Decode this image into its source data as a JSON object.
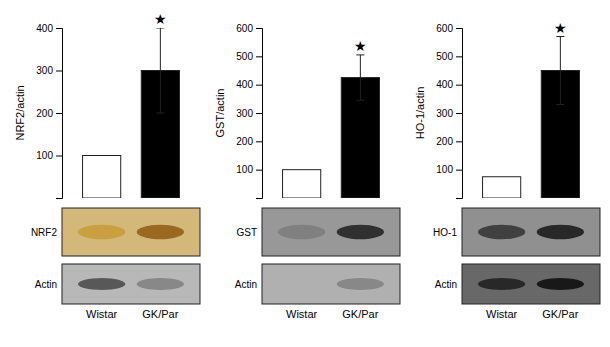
{
  "chart_data": [
    {
      "type": "bar",
      "ylabel": "NRF2/actin",
      "categories": [
        "Wistar",
        "GK/Par"
      ],
      "values": [
        100,
        300
      ],
      "errors": [
        0,
        100
      ],
      "colors": [
        "white",
        "black"
      ],
      "ylim": [
        0,
        400
      ],
      "yticks": [
        100,
        200,
        300,
        400
      ],
      "annotations": [
        {
          "text": "★",
          "x": "GK/Par"
        }
      ],
      "blots": [
        {
          "label": "NRF2",
          "color": "#d4b87a",
          "colors": [
            "#c8a040",
            "#9a6820"
          ]
        },
        {
          "label": "Actin",
          "color": "#b8b8b8",
          "colors": [
            "#585858",
            "#888888"
          ]
        }
      ]
    },
    {
      "type": "bar",
      "ylabel": "GST/actin",
      "categories": [
        "Wistar",
        "GK/Par"
      ],
      "values": [
        100,
        425
      ],
      "errors": [
        0,
        80
      ],
      "colors": [
        "white",
        "black"
      ],
      "ylim": [
        0,
        600
      ],
      "yticks": [
        100,
        200,
        300,
        400,
        500,
        600
      ],
      "annotations": [
        {
          "text": "★",
          "x": "GK/Par"
        }
      ],
      "blots": [
        {
          "label": "GST",
          "color": "#989898",
          "colors": [
            "#808080",
            "#303030"
          ]
        },
        {
          "label": "Actin",
          "color": "#b0b0b0",
          "colors": [
            "#b0b0b0",
            "#888888"
          ]
        }
      ]
    },
    {
      "type": "bar",
      "ylabel": "HO-1/actin",
      "categories": [
        "Wistar",
        "GK/Par"
      ],
      "values": [
        75,
        450
      ],
      "errors": [
        0,
        120
      ],
      "colors": [
        "white",
        "black"
      ],
      "ylim": [
        0,
        600
      ],
      "yticks": [
        100,
        200,
        300,
        400,
        500,
        600
      ],
      "annotations": [
        {
          "text": "★",
          "x": "GK/Par"
        }
      ],
      "blots": [
        {
          "label": "HO-1",
          "color": "#909090",
          "colors": [
            "#404040",
            "#282828"
          ]
        },
        {
          "label": "Actin",
          "color": "#686868",
          "colors": [
            "#282828",
            "#181818"
          ]
        }
      ]
    }
  ]
}
